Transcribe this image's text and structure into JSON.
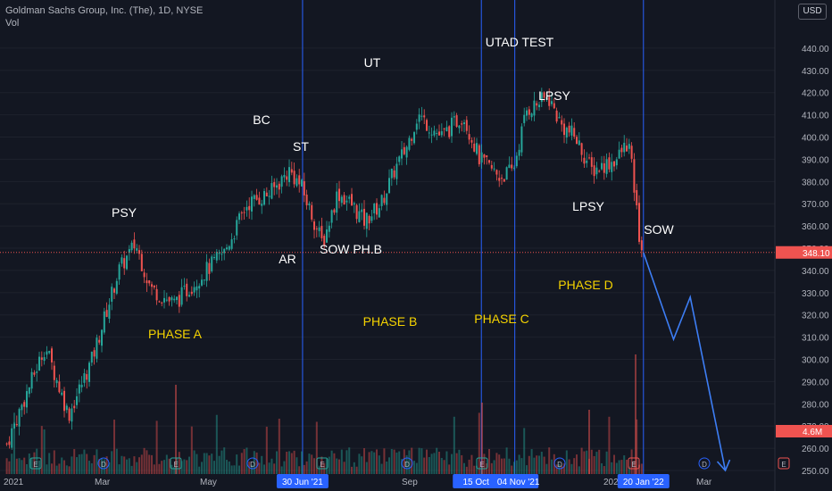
{
  "legend": {
    "symbol": "Goldman Sachs Group, Inc. (The), 1D, NYSE",
    "vol": "Vol"
  },
  "currency_button": "USD",
  "colors": {
    "background": "#131722",
    "up": "#26a69a",
    "down": "#ef5350",
    "vline": "#2962ff",
    "annotation": "#ffffff",
    "phase": "#f5d300",
    "projection": "#3d7ef5",
    "price_line": "#ef5350"
  },
  "chart_data": {
    "type": "candlestick",
    "y_axis": {
      "ticks": [
        250,
        260,
        270,
        280,
        290,
        300,
        310,
        320,
        330,
        340,
        350,
        360,
        370,
        380,
        390,
        400,
        410,
        420,
        430,
        440
      ],
      "ylim": [
        248,
        448
      ]
    },
    "x_axis": {
      "tick_labels": [
        "2021",
        "Mar",
        "May",
        "Sep",
        "202",
        "Mar"
      ],
      "highlighted_dates": [
        "30 Jun '21",
        "15 Oct",
        "04 Nov '21",
        "20 Jan '22"
      ]
    },
    "last_price": "348.10",
    "volume_label": "4.6M",
    "annotations": [
      {
        "text": "PSY",
        "kind": "event"
      },
      {
        "text": "BC",
        "kind": "event"
      },
      {
        "text": "ST",
        "kind": "event"
      },
      {
        "text": "AR",
        "kind": "event"
      },
      {
        "text": "SOW PH.B",
        "kind": "event"
      },
      {
        "text": "UT",
        "kind": "event"
      },
      {
        "text": "UTAD TEST",
        "kind": "event"
      },
      {
        "text": "LPSY",
        "kind": "event"
      },
      {
        "text": "LPSY",
        "kind": "event"
      },
      {
        "text": "SOW",
        "kind": "event"
      },
      {
        "text": "PHASE A",
        "kind": "phase"
      },
      {
        "text": "PHASE B",
        "kind": "phase"
      },
      {
        "text": "PHASE C",
        "kind": "phase"
      },
      {
        "text": "PHASE D",
        "kind": "phase"
      }
    ],
    "price_waypoints": [
      {
        "date": "2021-01-04",
        "y": 262
      },
      {
        "date": "2021-01-27",
        "y": 306
      },
      {
        "date": "2021-02-10",
        "y": 275
      },
      {
        "date": "2021-02-24",
        "y": 300
      },
      {
        "date": "2021-03-12",
        "y": 340
      },
      {
        "date": "2021-03-22",
        "y": 352
      },
      {
        "date": "2021-03-31",
        "y": 332
      },
      {
        "date": "2021-04-14",
        "y": 325
      },
      {
        "date": "2021-04-28",
        "y": 336
      },
      {
        "date": "2021-05-14",
        "y": 348
      },
      {
        "date": "2021-05-28",
        "y": 370
      },
      {
        "date": "2021-06-11",
        "y": 375
      },
      {
        "date": "2021-06-22",
        "y": 385
      },
      {
        "date": "2021-06-29",
        "y": 378
      },
      {
        "date": "2021-07-12",
        "y": 352
      },
      {
        "date": "2021-07-21",
        "y": 375
      },
      {
        "date": "2021-07-29",
        "y": 370
      },
      {
        "date": "2021-08-06",
        "y": 362
      },
      {
        "date": "2021-08-16",
        "y": 370
      },
      {
        "date": "2021-08-24",
        "y": 385
      },
      {
        "date": "2021-08-31",
        "y": 395
      },
      {
        "date": "2021-09-07",
        "y": 410
      },
      {
        "date": "2021-09-21",
        "y": 400
      },
      {
        "date": "2021-10-04",
        "y": 410
      },
      {
        "date": "2021-10-14",
        "y": 390
      },
      {
        "date": "2021-10-26",
        "y": 382
      },
      {
        "date": "2021-11-03",
        "y": 385
      },
      {
        "date": "2021-11-11",
        "y": 412
      },
      {
        "date": "2021-11-24",
        "y": 418
      },
      {
        "date": "2021-12-02",
        "y": 405
      },
      {
        "date": "2021-12-10",
        "y": 400
      },
      {
        "date": "2021-12-20",
        "y": 385
      },
      {
        "date": "2022-01-04",
        "y": 390
      },
      {
        "date": "2022-01-11",
        "y": 398
      },
      {
        "date": "2022-01-14",
        "y": 380
      },
      {
        "date": "2022-01-18",
        "y": 352
      },
      {
        "date": "2022-01-20",
        "y": 348
      }
    ],
    "projection": [
      {
        "date": "2022-01-20",
        "y": 348
      },
      {
        "date": "2022-02-07",
        "y": 309
      },
      {
        "date": "2022-02-17",
        "y": 328
      },
      {
        "date": "2022-03-10",
        "y": 250
      }
    ]
  }
}
